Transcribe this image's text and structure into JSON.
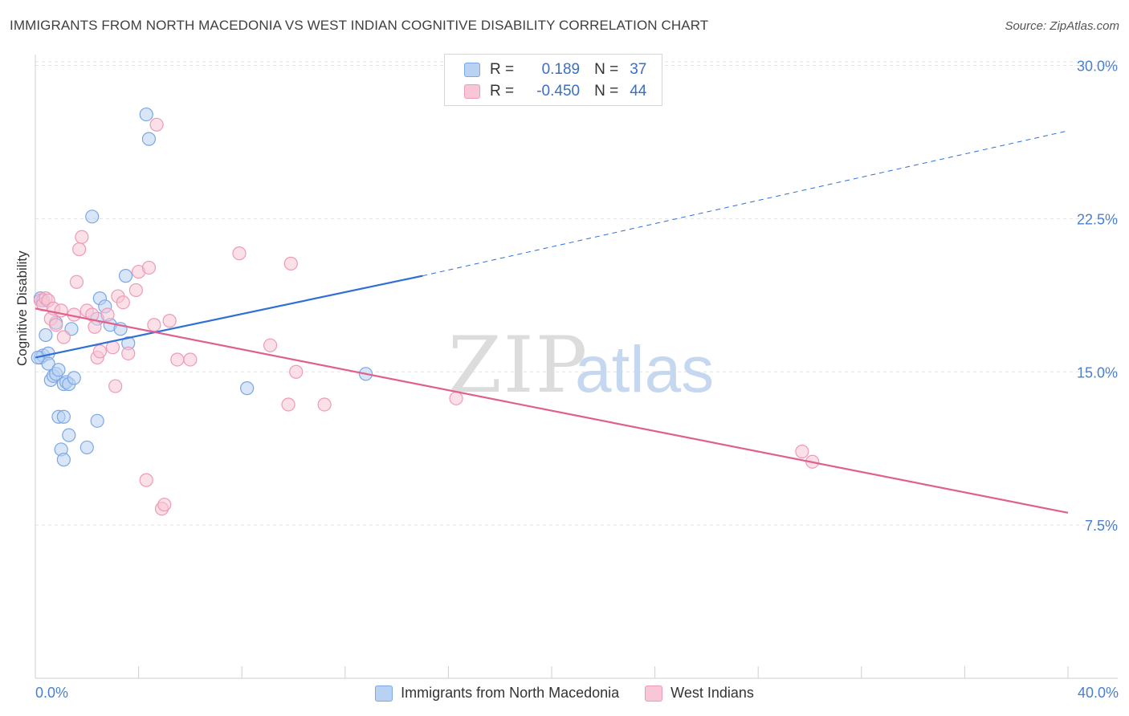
{
  "title": "IMMIGRANTS FROM NORTH MACEDONIA VS WEST INDIAN COGNITIVE DISABILITY CORRELATION CHART",
  "source": "Source: ZipAtlas.com",
  "watermark": {
    "part1": "ZIP",
    "part2": "atlas"
  },
  "stats": [
    {
      "r_label": "R =",
      "r_value": "0.189",
      "n_label": "N =",
      "n_value": "37"
    },
    {
      "r_label": "R =",
      "r_value": "-0.450",
      "n_label": "N =",
      "n_value": "44"
    }
  ],
  "chart_data": {
    "type": "scatter",
    "title": "IMMIGRANTS FROM NORTH MACEDONIA VS WEST INDIAN COGNITIVE DISABILITY CORRELATION CHART",
    "xlabel": "",
    "ylabel": "Cognitive Disability",
    "xlim": [
      0,
      40
    ],
    "ylim": [
      0,
      31.5
    ],
    "x_tick_labels": [
      "0.0%",
      "40.0%"
    ],
    "y_ticks": [
      7.5,
      15.0,
      22.5,
      30.0
    ],
    "y_tick_labels": [
      "7.5%",
      "15.0%",
      "22.5%",
      "30.0%"
    ],
    "grid": true,
    "legend_position": "bottom-center",
    "series": [
      {
        "name": "Immigrants from North Macedonia",
        "color": "#7aa7e6",
        "fill": "#b9d1f3",
        "trend": {
          "x0": 0,
          "y0": 15.7,
          "x1": 15.0,
          "y1": 19.7,
          "dashed_to_x": 40,
          "dashed_to_y": 26.8,
          "color": "#2f6fd6"
        },
        "points": [
          [
            0.2,
            18.6
          ],
          [
            0.3,
            18.5
          ],
          [
            0.2,
            15.7
          ],
          [
            0.3,
            15.8
          ],
          [
            0.4,
            16.8
          ],
          [
            0.5,
            15.9
          ],
          [
            0.5,
            15.4
          ],
          [
            0.6,
            14.6
          ],
          [
            0.7,
            14.8
          ],
          [
            0.8,
            14.9
          ],
          [
            0.8,
            17.4
          ],
          [
            0.9,
            15.1
          ],
          [
            0.9,
            12.8
          ],
          [
            1.1,
            12.8
          ],
          [
            1.1,
            14.4
          ],
          [
            1.2,
            14.5
          ],
          [
            1.3,
            14.4
          ],
          [
            1.4,
            17.1
          ],
          [
            1.5,
            14.7
          ],
          [
            1.0,
            11.2
          ],
          [
            1.1,
            10.7
          ],
          [
            1.3,
            11.9
          ],
          [
            2.0,
            11.3
          ],
          [
            2.4,
            17.6
          ],
          [
            2.5,
            18.6
          ],
          [
            2.7,
            18.2
          ],
          [
            2.2,
            22.6
          ],
          [
            2.4,
            12.6
          ],
          [
            2.9,
            17.3
          ],
          [
            3.3,
            17.1
          ],
          [
            3.6,
            16.4
          ],
          [
            3.5,
            19.7
          ],
          [
            4.3,
            27.6
          ],
          [
            4.4,
            26.4
          ],
          [
            8.2,
            14.2
          ],
          [
            12.8,
            14.9
          ],
          [
            0.1,
            15.7
          ]
        ]
      },
      {
        "name": "West Indians",
        "color": "#ee9ab6",
        "fill": "#f8c6d6",
        "trend": {
          "x0": 0,
          "y0": 18.1,
          "x1": 40,
          "y1": 8.1,
          "color": "#e0608c"
        },
        "points": [
          [
            0.2,
            18.5
          ],
          [
            0.3,
            18.3
          ],
          [
            0.4,
            18.6
          ],
          [
            0.5,
            18.5
          ],
          [
            0.6,
            17.6
          ],
          [
            0.7,
            18.1
          ],
          [
            0.8,
            17.3
          ],
          [
            1.0,
            18.0
          ],
          [
            1.1,
            16.7
          ],
          [
            1.5,
            17.8
          ],
          [
            1.6,
            19.4
          ],
          [
            1.7,
            21.0
          ],
          [
            1.8,
            21.6
          ],
          [
            2.0,
            18.0
          ],
          [
            2.2,
            17.8
          ],
          [
            2.3,
            17.2
          ],
          [
            2.4,
            15.7
          ],
          [
            2.5,
            16.0
          ],
          [
            2.8,
            17.8
          ],
          [
            3.0,
            16.2
          ],
          [
            3.1,
            14.3
          ],
          [
            3.2,
            18.7
          ],
          [
            3.4,
            18.4
          ],
          [
            3.6,
            15.9
          ],
          [
            3.9,
            19.0
          ],
          [
            4.0,
            19.9
          ],
          [
            4.4,
            20.1
          ],
          [
            4.6,
            17.3
          ],
          [
            4.7,
            27.1
          ],
          [
            5.2,
            17.5
          ],
          [
            5.5,
            15.6
          ],
          [
            6.0,
            15.6
          ],
          [
            4.3,
            9.7
          ],
          [
            4.9,
            8.3
          ],
          [
            5.0,
            8.5
          ],
          [
            7.9,
            20.8
          ],
          [
            9.1,
            16.3
          ],
          [
            9.9,
            20.3
          ],
          [
            10.1,
            15.0
          ],
          [
            9.8,
            13.4
          ],
          [
            11.2,
            13.4
          ],
          [
            16.3,
            13.7
          ],
          [
            29.7,
            11.1
          ],
          [
            30.1,
            10.6
          ]
        ]
      }
    ]
  }
}
